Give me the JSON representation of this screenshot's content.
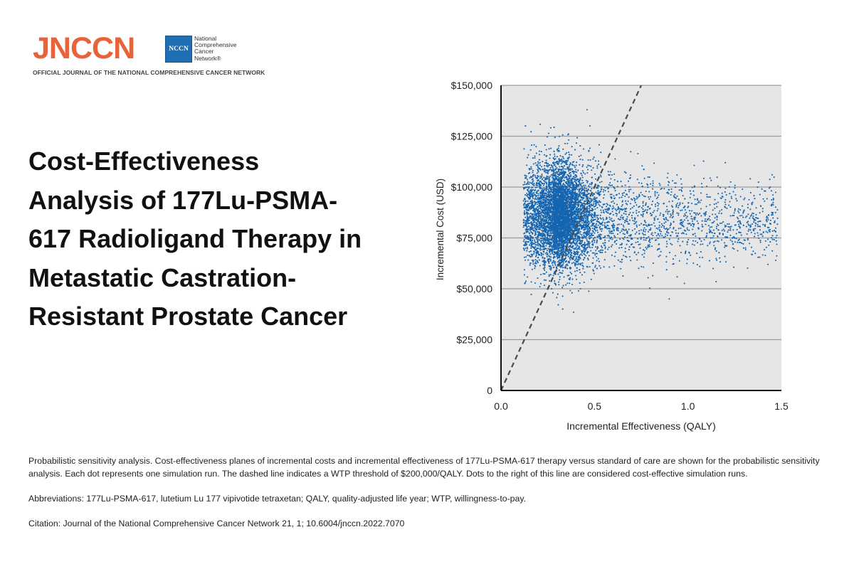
{
  "journal": {
    "wordmark": "JNCCN",
    "wordmark_color": "#e8633a",
    "badge_text": "NCCN",
    "network_name": [
      "National",
      "Comprehensive",
      "Cancer",
      "Network®"
    ],
    "tagline": "OFFICIAL JOURNAL OF THE NATIONAL COMPREHENSIVE CANCER NETWORK"
  },
  "article": {
    "title": "Cost-Effectiveness Analysis of 177Lu-PSMA-617 Radioligand Therapy in Metastatic Castration-Resistant Prostate Cancer"
  },
  "chart_data": {
    "type": "scatter",
    "xlabel": "Incremental Effectiveness (QALY)",
    "ylabel": "Incremental Cost (USD)",
    "xlim": [
      0,
      1.5
    ],
    "ylim": [
      0,
      150000
    ],
    "x_ticks": [
      0,
      0.5,
      1.0,
      1.5
    ],
    "x_tick_labels": [
      "0.0",
      "0.5",
      "1.0",
      "1.5"
    ],
    "y_ticks": [
      0,
      25000,
      50000,
      75000,
      100000,
      125000,
      150000
    ],
    "y_tick_labels": [
      "0",
      "$25,000",
      "$50,000",
      "$75,000",
      "$100,000",
      "$125,000",
      "$150,000"
    ],
    "grid": "horizontal",
    "background_color": "#e6e6e6",
    "point_color": "#1565b0",
    "wtp_line": {
      "style": "dashed",
      "slope_usd_per_qaly": 200000,
      "from": [
        0,
        0
      ],
      "to": [
        0.75,
        150000
      ]
    },
    "points": {
      "description_n": "≈7000 simulation runs (one dot each)",
      "cloud": {
        "x_center": 0.35,
        "y_center": 85000,
        "x_range": [
          0.12,
          1.5
        ],
        "y_range": [
          37000,
          138000
        ]
      },
      "sample": [
        [
          0.28,
          85000
        ],
        [
          0.25,
          90000
        ],
        [
          0.3,
          78000
        ],
        [
          0.22,
          95000
        ],
        [
          0.35,
          88000
        ],
        [
          0.4,
          92000
        ],
        [
          0.5,
          84000
        ],
        [
          0.6,
          80000
        ],
        [
          0.7,
          86000
        ],
        [
          0.8,
          79000
        ],
        [
          0.9,
          88000
        ],
        [
          1.0,
          82000
        ],
        [
          1.1,
          76000
        ],
        [
          1.2,
          90000
        ],
        [
          1.3,
          74000
        ],
        [
          1.4,
          88000
        ],
        [
          1.45,
          106000
        ],
        [
          1.47,
          64000
        ],
        [
          0.46,
          138000
        ],
        [
          0.38,
          48000
        ],
        [
          0.9,
          45000
        ],
        [
          0.13,
          53000
        ],
        [
          0.33,
          40000
        ],
        [
          1.2,
          112000
        ],
        [
          1.03,
          98000
        ]
      ]
    }
  },
  "footnotes": {
    "caption": "Probabilistic sensitivity analysis. Cost-effectiveness planes of incremental costs and incremental effectiveness of 177Lu-PSMA-617 therapy versus standard of care are shown for the probabilistic sensitivity analysis. Each dot represents one simulation run. The dashed line indicates a WTP threshold of $200,000/QALY. Dots to the right of this line are considered cost-effective simulation runs.",
    "abbreviations": "Abbreviations: 177Lu-PSMA-617, lutetium Lu 177 vipivotide tetraxetan; QALY, quality-adjusted life year; WTP, willingness-to-pay.",
    "citation": "Citation: Journal of the National Comprehensive Cancer Network 21, 1; 10.6004/jnccn.2022.7070"
  }
}
